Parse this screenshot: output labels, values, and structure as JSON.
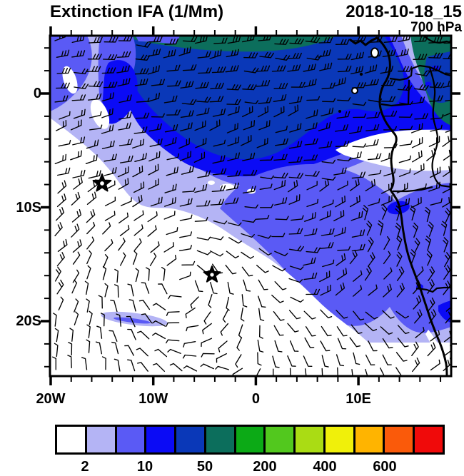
{
  "header": {
    "title": "Extinction IFA (1/Mm)",
    "datetime": "2018-10-18_15",
    "level": "700 hPa"
  },
  "axes": {
    "x_tick_labels": [
      "20W",
      "10W",
      "0",
      "10E"
    ],
    "y_tick_labels": [
      "0",
      "10S",
      "20S"
    ]
  },
  "colorbar": {
    "tick_labels": [
      "2",
      "10",
      "50",
      "200",
      "400",
      "600"
    ],
    "colors": [
      "#ffffff",
      "#b4b4f5",
      "#5a5af5",
      "#0b0bf5",
      "#0a38b8",
      "#0c6e5c",
      "#0caa16",
      "#52c81e",
      "#aadc14",
      "#f0f00a",
      "#ffb400",
      "#fa5a0a",
      "#f00a0a"
    ]
  },
  "palette": {
    "c0": "#ffffff",
    "c1": "#b4b4f5",
    "c2": "#5a5af5",
    "c3": "#0b0bf5",
    "c4": "#0a38b8",
    "c5": "#0c6e5c",
    "line": "#000000"
  },
  "markers": [
    {
      "symbol": "star",
      "approx_position": "15W, 8S"
    },
    {
      "symbol": "star",
      "approx_position": "4W, 16S"
    }
  ],
  "chart_data": {
    "type": "filled-contour-map",
    "title": "Extinction IFA (1/Mm)",
    "timestamp": "2018-10-18_15",
    "pressure_level_hPa": 700,
    "x_axis": {
      "label": "longitude",
      "tick_labels": [
        "20W",
        "10W",
        "0",
        "10E"
      ],
      "approx_range_deg": [
        -20,
        19
      ]
    },
    "y_axis": {
      "label": "latitude",
      "tick_labels": [
        "0",
        "10S",
        "20S"
      ],
      "approx_range_deg": [
        -25,
        5
      ]
    },
    "colorbar": {
      "unit": "1/Mm",
      "labeled_levels": [
        2,
        10,
        50,
        200,
        400,
        600
      ],
      "colors": [
        "#ffffff",
        "#b4b4f5",
        "#5a5af5",
        "#0b0bf5",
        "#0a38b8",
        "#0c6e5c",
        "#0caa16",
        "#52c81e",
        "#aadc14",
        "#f0f00a",
        "#ffb400",
        "#fa5a0a",
        "#f00a0a"
      ],
      "legend_position": "bottom"
    },
    "overlays": [
      "wind barbs over whole domain",
      "African coastline and country borders on east side",
      "two star markers in south Atlantic"
    ],
    "field_summary": "Highest extinction (50-100 1/Mm, dark teal/green band) along the northern edge near the equator; broad 20-50 (dark blue) and 10-20 (blue) bands across the Gulf of Guinea; a 5-10 (blue-violet) plume extending southeast to the Angolan coast surrounded by 2-5 (lavender); clear air (<2, white) over the southeast Atlantic southwest of the plume with anticyclonic wind-barb circulation."
  }
}
